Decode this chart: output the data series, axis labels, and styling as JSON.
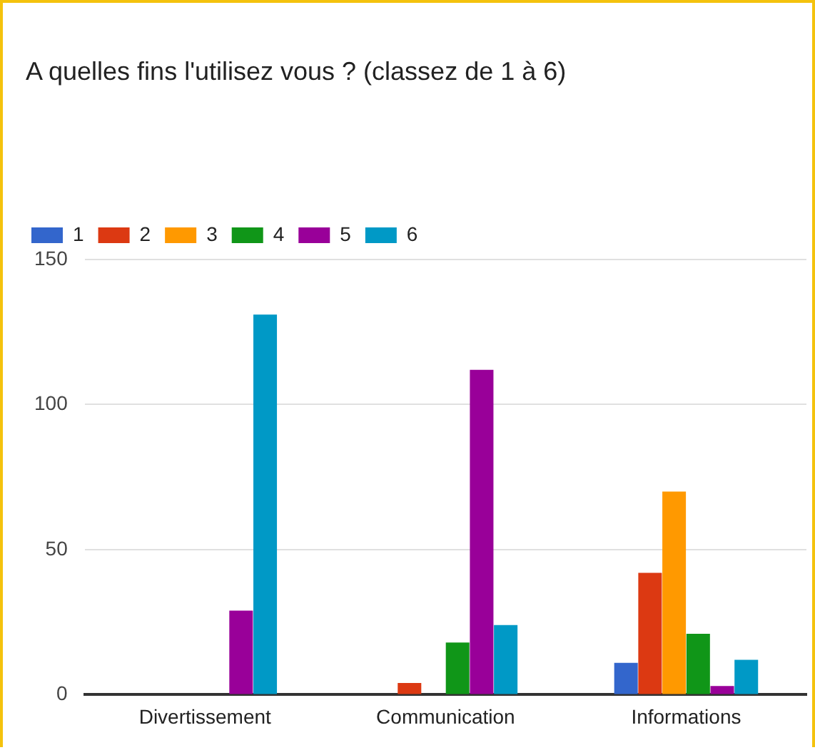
{
  "chart_data": {
    "type": "bar",
    "title": "A quelles fins l'utilisez vous ? (classez de 1 à 6)",
    "categories": [
      "Divertissement",
      "Communication",
      "Informations"
    ],
    "series": [
      {
        "name": "1",
        "color": "#3366cc",
        "values": [
          0,
          0,
          11
        ]
      },
      {
        "name": "2",
        "color": "#dc3912",
        "values": [
          0,
          4,
          42
        ]
      },
      {
        "name": "3",
        "color": "#ff9900",
        "values": [
          0,
          0,
          70
        ]
      },
      {
        "name": "4",
        "color": "#109618",
        "values": [
          0,
          18,
          21
        ]
      },
      {
        "name": "5",
        "color": "#990099",
        "values": [
          29,
          112,
          3
        ]
      },
      {
        "name": "6",
        "color": "#0099c6",
        "values": [
          131,
          24,
          12
        ]
      }
    ],
    "ylim": [
      0,
      150
    ],
    "yticks": [
      0,
      50,
      100,
      150
    ],
    "grid": "y",
    "legend": "top left"
  }
}
